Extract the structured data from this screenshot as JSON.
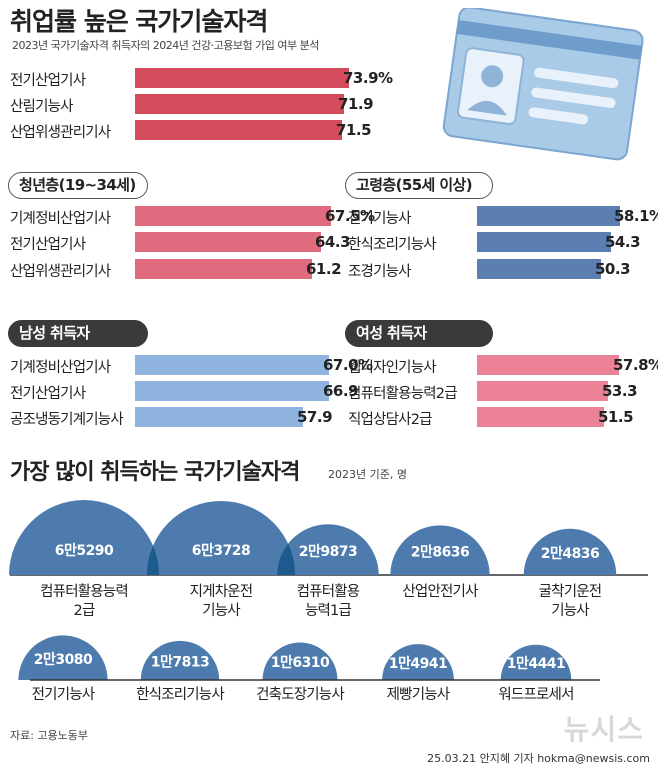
{
  "title": "취업률 높은 국가기술자격",
  "subtitle": "2023년 국가기술자격 취득자의 2024년 건강·고용보험 가입 여부 분석",
  "colors": {
    "red": "#d44c5c",
    "pink": "#e06a7e",
    "blue_dark": "#5a7fb0",
    "blue_light": "#8fb4e0",
    "rose": "#ec8296",
    "bubble": "#4e7bad",
    "overlap": "#1d5b8e"
  },
  "chart_data": [
    {
      "type": "bar",
      "name": "overall",
      "title": "",
      "categories": [
        "전기산업기사",
        "산림기능사",
        "산업위생관리기사"
      ],
      "values": [
        73.9,
        71.9,
        71.5
      ],
      "labels": [
        "73.9%",
        "71.9",
        "71.5"
      ],
      "unit": "%"
    },
    {
      "type": "bar",
      "name": "youth",
      "title": "청년층(19~34세)",
      "categories": [
        "기계정비산업기사",
        "전기산업기사",
        "산업위생관리기사"
      ],
      "values": [
        67.5,
        64.3,
        61.2
      ],
      "labels": [
        "67.5%",
        "64.3",
        "61.2"
      ],
      "unit": "%"
    },
    {
      "type": "bar",
      "name": "senior",
      "title": "고령층(55세 이상)",
      "categories": [
        "전기기능사",
        "한식조리기능사",
        "조경기능사"
      ],
      "values": [
        58.1,
        54.3,
        50.3
      ],
      "labels": [
        "58.1%",
        "54.3",
        "50.3"
      ],
      "unit": "%"
    },
    {
      "type": "bar",
      "name": "male",
      "title": "남성 취득자",
      "categories": [
        "기계정비산업기사",
        "전기산업기사",
        "공조냉동기계기능사"
      ],
      "values": [
        67.0,
        66.9,
        57.9
      ],
      "labels": [
        "67.0%",
        "66.9",
        "57.9"
      ],
      "unit": "%"
    },
    {
      "type": "bar",
      "name": "female",
      "title": "여성 취득자",
      "categories": [
        "웹디자인기능사",
        "컴퓨터활용능력2급",
        "직업상담사2급"
      ],
      "values": [
        57.8,
        53.3,
        51.5
      ],
      "labels": [
        "57.8%",
        "53.3",
        "51.5"
      ],
      "unit": "%"
    },
    {
      "type": "bubble",
      "name": "most_acquired",
      "title": "가장 많이 취득하는 국가기술자격",
      "subtitle": "2023년 기준, 명",
      "categories": [
        "컴퓨터활용능력 2급",
        "지게차운전 기능사",
        "컴퓨터활용 능력1급",
        "산업안전기사",
        "굴착기운전 기능사",
        "전기기능사",
        "한식조리기능사",
        "건축도장기능사",
        "제빵기능사",
        "워드프로세서"
      ],
      "label_lines": [
        [
          "컴퓨터활용능력",
          "2급"
        ],
        [
          "지게차운전",
          "기능사"
        ],
        [
          "컴퓨터활용",
          "능력1급"
        ],
        [
          "산업안전기사"
        ],
        [
          "굴착기운전",
          "기능사"
        ],
        [
          "전기기능사"
        ],
        [
          "한식조리기능사"
        ],
        [
          "건축도장기능사"
        ],
        [
          "제빵기능사"
        ],
        [
          "워드프로세서"
        ]
      ],
      "values": [
        65290,
        63728,
        29873,
        28636,
        24836,
        23080,
        17813,
        16310,
        14941,
        14441
      ],
      "value_labels": [
        "6만5290",
        "6만3728",
        "2만9873",
        "2만8636",
        "2만4836",
        "2만3080",
        "1만7813",
        "1만6310",
        "1만4941",
        "1만4441"
      ]
    }
  ],
  "source": "자료: 고용노동부",
  "credit": "25.03.21 안지혜 기자 hokma@newsis.com",
  "watermark": "뉴시스"
}
